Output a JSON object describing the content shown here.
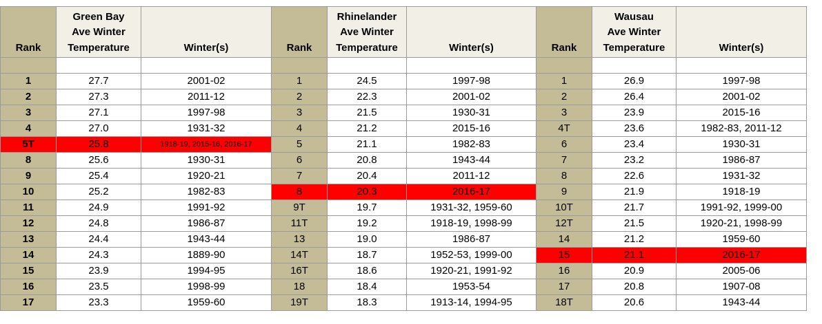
{
  "colors": {
    "header_bg": "#f2f0e6",
    "rank_bg": "#c4bc96",
    "highlight": "#ff0000"
  },
  "headers": {
    "gb_rank": "Rank",
    "gb_temp_lines": [
      "Green Bay",
      "Ave Winter",
      "Temperature"
    ],
    "gb_winters": "Winter(s)",
    "rh_rank": "Rank",
    "rh_temp_lines": [
      "Rhinelander",
      "Ave Winter",
      "Temperature"
    ],
    "rh_winters": "Winter(s)",
    "wa_rank": "Rank",
    "wa_temp_lines": [
      "Wausau",
      "Ave Winter",
      "Temperature"
    ],
    "wa_winters": "Winter(s)"
  },
  "rows": [
    {
      "gb": {
        "rank": "1",
        "temp": "27.7",
        "winters": "2001-02"
      },
      "rh": {
        "rank": "1",
        "temp": "24.5",
        "winters": "1997-98"
      },
      "wa": {
        "rank": "1",
        "temp": "26.9",
        "winters": "1997-98"
      }
    },
    {
      "gb": {
        "rank": "2",
        "temp": "27.3",
        "winters": "2011-12"
      },
      "rh": {
        "rank": "2",
        "temp": "22.3",
        "winters": "2001-02"
      },
      "wa": {
        "rank": "2",
        "temp": "26.4",
        "winters": "2001-02"
      }
    },
    {
      "gb": {
        "rank": "3",
        "temp": "27.1",
        "winters": "1997-98"
      },
      "rh": {
        "rank": "3",
        "temp": "21.5",
        "winters": "1930-31"
      },
      "wa": {
        "rank": "3",
        "temp": "23.9",
        "winters": "2015-16"
      }
    },
    {
      "gb": {
        "rank": "4",
        "temp": "27.0",
        "winters": "1931-32"
      },
      "rh": {
        "rank": "4",
        "temp": "21.2",
        "winters": "2015-16"
      },
      "wa": {
        "rank": "4T",
        "temp": "23.6",
        "winters": "1982-83, 2011-12"
      }
    },
    {
      "gb": {
        "rank": "5T",
        "temp": "25.8",
        "winters": "1918-19, 2015-16, 2016-17",
        "highlight": true,
        "small": true
      },
      "rh": {
        "rank": "5",
        "temp": "21.1",
        "winters": "1982-83"
      },
      "wa": {
        "rank": "6",
        "temp": "23.4",
        "winters": "1930-31"
      }
    },
    {
      "gb": {
        "rank": "8",
        "temp": "25.6",
        "winters": "1930-31"
      },
      "rh": {
        "rank": "6",
        "temp": "20.8",
        "winters": "1943-44"
      },
      "wa": {
        "rank": "7",
        "temp": "23.2",
        "winters": "1986-87"
      }
    },
    {
      "gb": {
        "rank": "9",
        "temp": "25.4",
        "winters": "1920-21"
      },
      "rh": {
        "rank": "7",
        "temp": "20.4",
        "winters": "2011-12"
      },
      "wa": {
        "rank": "8",
        "temp": "22.6",
        "winters": "1931-32"
      }
    },
    {
      "gb": {
        "rank": "10",
        "temp": "25.2",
        "winters": "1982-83"
      },
      "rh": {
        "rank": "8",
        "temp": "20.3",
        "winters": "2016-17",
        "highlight": true
      },
      "wa": {
        "rank": "9",
        "temp": "21.9",
        "winters": "1918-19"
      }
    },
    {
      "gb": {
        "rank": "11",
        "temp": "24.9",
        "winters": "1991-92"
      },
      "rh": {
        "rank": "9T",
        "temp": "19.7",
        "winters": "1931-32, 1959-60"
      },
      "wa": {
        "rank": "10T",
        "temp": "21.7",
        "winters": "1991-92, 1999-00"
      }
    },
    {
      "gb": {
        "rank": "12",
        "temp": "24.8",
        "winters": "1986-87"
      },
      "rh": {
        "rank": "11T",
        "temp": "19.2",
        "winters": "1918-19, 1998-99"
      },
      "wa": {
        "rank": "12T",
        "temp": "21.5",
        "winters": "1920-21, 1998-99"
      }
    },
    {
      "gb": {
        "rank": "13",
        "temp": "24.4",
        "winters": "1943-44"
      },
      "rh": {
        "rank": "13",
        "temp": "19.0",
        "winters": "1986-87"
      },
      "wa": {
        "rank": "14",
        "temp": "21.2",
        "winters": "1959-60"
      }
    },
    {
      "gb": {
        "rank": "14",
        "temp": "24.3",
        "winters": "1889-90"
      },
      "rh": {
        "rank": "14T",
        "temp": "18.7",
        "winters": "1952-53, 1999-00"
      },
      "wa": {
        "rank": "15",
        "temp": "21.1",
        "winters": "2016-17",
        "highlight": true
      }
    },
    {
      "gb": {
        "rank": "15",
        "temp": "23.9",
        "winters": "1994-95"
      },
      "rh": {
        "rank": "16T",
        "temp": "18.6",
        "winters": "1920-21, 1991-92"
      },
      "wa": {
        "rank": "16",
        "temp": "20.9",
        "winters": "2005-06"
      }
    },
    {
      "gb": {
        "rank": "16",
        "temp": "23.5",
        "winters": "1998-99"
      },
      "rh": {
        "rank": "18",
        "temp": "18.4",
        "winters": "1953-54"
      },
      "wa": {
        "rank": "17",
        "temp": "20.8",
        "winters": "1907-08"
      }
    },
    {
      "gb": {
        "rank": "17",
        "temp": "23.3",
        "winters": "1959-60"
      },
      "rh": {
        "rank": "19T",
        "temp": "18.3",
        "winters": "1913-14, 1994-95"
      },
      "wa": {
        "rank": "18T",
        "temp": "20.6",
        "winters": "1943-44"
      }
    }
  ]
}
